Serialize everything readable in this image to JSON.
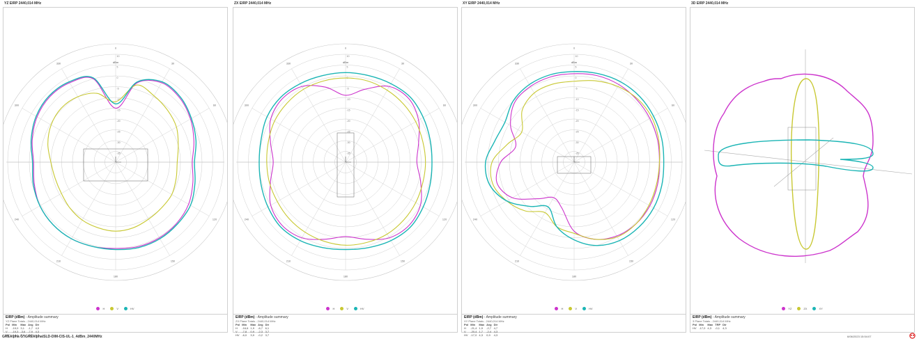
{
  "panels": [
    {
      "title": "YZ EIRP 2440,014 MHz",
      "legend": [
        {
          "label": "H",
          "color": "#cc33cc"
        },
        {
          "label": "V",
          "color": "#c8c832"
        },
        {
          "label": "HV",
          "color": "#1bb5b5"
        }
      ],
      "summary": {
        "title": "EIRP (dBm)",
        "subtitle": "Amplitude summary",
        "line": "YZ Plane Totals - 2440,014 MHz",
        "headers": [
          "Pol",
          "Min",
          "Max",
          "Avg",
          "Dir"
        ],
        "rows": [
          [
            "H",
            "-19,0",
            "3,1",
            "-1,7",
            "4,0"
          ],
          [
            "V",
            "-19,3",
            "-3,6",
            "-7,9",
            "4,3"
          ],
          [
            "HV",
            "-14,1",
            "3,8",
            "-0,3",
            "4,3"
          ]
        ]
      }
    },
    {
      "title": "ZX EIRP 2440,014 MHz",
      "legend": [
        {
          "label": "H",
          "color": "#cc33cc"
        },
        {
          "label": "V",
          "color": "#c8c832"
        },
        {
          "label": "HV",
          "color": "#1bb5b5"
        }
      ],
      "summary": {
        "title": "EIRP (dBm)",
        "subtitle": "Amplitude summary",
        "line": "ZX Plane Totals - 2440,014 MHz",
        "headers": [
          "Pol",
          "Min",
          "Max",
          "Avg",
          "Dir"
        ],
        "rows": [
          [
            "H",
            "-16,6",
            "1,9",
            "-6,7",
            "6,1"
          ],
          [
            "V",
            "-7,8",
            "0,9",
            "-2,3",
            "3,7"
          ],
          [
            "HV",
            "-6,0",
            "3,9",
            "-0,2",
            "3,7"
          ]
        ]
      }
    },
    {
      "title": "XY EIRP 2440,014 MHz",
      "legend": [
        {
          "label": "H",
          "color": "#cc33cc"
        },
        {
          "label": "V",
          "color": "#c8c832"
        },
        {
          "label": "HV",
          "color": "#1bb5b5"
        }
      ],
      "summary": {
        "title": "EIRP (dBm)",
        "subtitle": "Amplitude summary",
        "line": "XY Plane Totals - 2440,014 MHz",
        "headers": [
          "Pol",
          "Min",
          "Max",
          "Avg",
          "Dir"
        ],
        "rows": [
          [
            "H",
            "-21,4",
            "1,9",
            "-2,7",
            "4,7"
          ],
          [
            "V",
            "-20,4",
            "1,7",
            "-2,4",
            "4,3"
          ],
          [
            "HV",
            "-17,0",
            "4,3",
            "0,9",
            "4,3"
          ]
        ]
      }
    },
    {
      "title": "3D EIRP 2440,014 MHz",
      "legend": [
        {
          "label": "YZ",
          "color": "#cc33cc"
        },
        {
          "label": "ZX",
          "color": "#c8c832"
        },
        {
          "label": "XY",
          "color": "#1bb5b5"
        }
      ],
      "summary": {
        "title": "EIRP (dBm)",
        "subtitle": "Amplitude summary",
        "line": "3 Plane Totals - 2440,014 MHz",
        "headers": [
          "Pol",
          "Min",
          "Max",
          "TRP",
          "Dir"
        ],
        "rows": [
          [
            "HV",
            "-17,0",
            "4,3",
            "-0,1",
            "4,3"
          ]
        ]
      }
    }
  ],
  "colors": {
    "H": "#cc33cc",
    "V": "#c8c832",
    "HV": "#1bb5b5",
    "grid": "#c8c8c8"
  },
  "footer": {
    "left": "GREAlpha G:\\GREAlpha\\SLD-DIM-CIS-UL-1_4dBm_2440MHz",
    "right": "6/06/2023 15:54:07"
  },
  "chart_data": [
    {
      "type": "polar",
      "title": "YZ EIRP 2440,014 MHz",
      "unit": "dBm",
      "rlim": [
        -40,
        10
      ],
      "radial_ticks": [
        10,
        5,
        0,
        -5,
        -10,
        -15,
        -20,
        -25,
        -30,
        -35
      ],
      "angular_ticks": [
        0,
        30,
        60,
        90,
        120,
        150,
        180,
        210,
        240,
        270,
        300,
        330
      ],
      "angle_deg": [
        0,
        15,
        30,
        45,
        60,
        75,
        90,
        105,
        120,
        135,
        150,
        165,
        180,
        195,
        210,
        225,
        240,
        255,
        270,
        285,
        300,
        315,
        330,
        345
      ],
      "series": [
        {
          "name": "H",
          "values": [
            -15,
            -2,
            2.5,
            2,
            0,
            -2.5,
            -4.5,
            -3,
            -1,
            0,
            0.5,
            0.5,
            0,
            0.5,
            1,
            1,
            0.5,
            -1,
            -2,
            0,
            2,
            3,
            2.5,
            0
          ]
        },
        {
          "name": "V",
          "values": [
            -12,
            -3,
            -4.5,
            -6,
            -7.5,
            -10,
            -11.5,
            -11,
            -10,
            -10,
            -9.5,
            -8.5,
            -8,
            -8.5,
            -9,
            -10,
            -11,
            -11,
            -10,
            -7.5,
            -5.5,
            -4.5,
            -5,
            -7
          ]
        },
        {
          "name": "HV",
          "values": [
            -13,
            -1.5,
            3,
            2.5,
            0.5,
            -1.5,
            -3.5,
            -2,
            0,
            0.5,
            1,
            1,
            0.5,
            0.5,
            1,
            1,
            0.5,
            -0.5,
            -1.5,
            0.5,
            2.5,
            3.5,
            3,
            0.5
          ]
        }
      ]
    },
    {
      "type": "polar",
      "title": "ZX EIRP 2440,014 MHz",
      "unit": "dBm",
      "rlim": [
        -40,
        10
      ],
      "radial_ticks": [
        10,
        5,
        0,
        -5,
        -10,
        -15,
        -20,
        -25,
        -30,
        -35
      ],
      "angular_ticks": [
        0,
        30,
        60,
        90,
        120,
        150,
        180,
        210,
        240,
        270,
        300,
        330
      ],
      "angle_deg": [
        0,
        15,
        30,
        45,
        60,
        75,
        90,
        105,
        120,
        135,
        150,
        165,
        180,
        195,
        210,
        225,
        240,
        255,
        270,
        285,
        300,
        315,
        330,
        345
      ],
      "series": [
        {
          "name": "H",
          "values": [
            -9,
            -5,
            0.5,
            1.5,
            -1,
            -5,
            -7,
            -4,
            0,
            1.5,
            0.5,
            -3,
            -5.5,
            -3,
            0.5,
            1.5,
            0,
            -4,
            -6.5,
            -4,
            0,
            1.5,
            0.5,
            -4
          ]
        },
        {
          "name": "V",
          "values": [
            -1,
            -1,
            -1.5,
            -2,
            -2.5,
            -3,
            -3,
            -3,
            -2.5,
            -2,
            -1.5,
            -1.5,
            -1.5,
            -2,
            -2.5,
            -3,
            -3.5,
            -3.5,
            -3.5,
            -3,
            -2,
            -1.5,
            -1,
            -1
          ]
        },
        {
          "name": "HV",
          "values": [
            1.5,
            1.5,
            2,
            2.5,
            1.5,
            0.5,
            0,
            0.5,
            1.5,
            2.5,
            2,
            1,
            0.5,
            1,
            2,
            2.5,
            1.5,
            0.5,
            0,
            0.5,
            2,
            2.5,
            2,
            1.5
          ]
        }
      ]
    },
    {
      "type": "polar",
      "title": "XY EIRP 2440,014 MHz",
      "unit": "dBm",
      "rlim": [
        -40,
        10
      ],
      "radial_ticks": [
        10,
        5,
        0,
        -5,
        -10,
        -15,
        -20,
        -25,
        -30,
        -35
      ],
      "angular_ticks": [
        0,
        30,
        60,
        90,
        120,
        150,
        180,
        210,
        240,
        270,
        300,
        330
      ],
      "angle_deg": [
        0,
        15,
        30,
        45,
        60,
        75,
        90,
        105,
        120,
        135,
        150,
        165,
        180,
        195,
        210,
        225,
        240,
        255,
        270,
        285,
        300,
        315,
        330,
        345
      ],
      "series": [
        {
          "name": "H",
          "values": [
            1,
            1.5,
            1.5,
            1,
            0.5,
            0,
            -0.5,
            0,
            0.5,
            0.5,
            -0.5,
            -3,
            -8,
            -18,
            -21,
            -16,
            -7,
            -3,
            -6,
            -12,
            -6,
            -1,
            0.5,
            1
          ]
        },
        {
          "name": "V",
          "values": [
            -2.5,
            -1,
            0.5,
            1.5,
            1.5,
            0.5,
            -0.5,
            -0.5,
            0,
            0.5,
            0,
            -3,
            -7,
            -9,
            -13,
            -8,
            -4,
            -1,
            -2,
            -8,
            -12,
            -6,
            -3,
            -2.5
          ]
        },
        {
          "name": "HV",
          "values": [
            2,
            2.5,
            3,
            3,
            2.5,
            2,
            1.5,
            2,
            2.5,
            2.5,
            2,
            0,
            -4,
            -9,
            -16,
            -11,
            -4,
            0.5,
            1,
            -2,
            -3,
            0,
            1.5,
            2
          ]
        }
      ]
    }
  ]
}
